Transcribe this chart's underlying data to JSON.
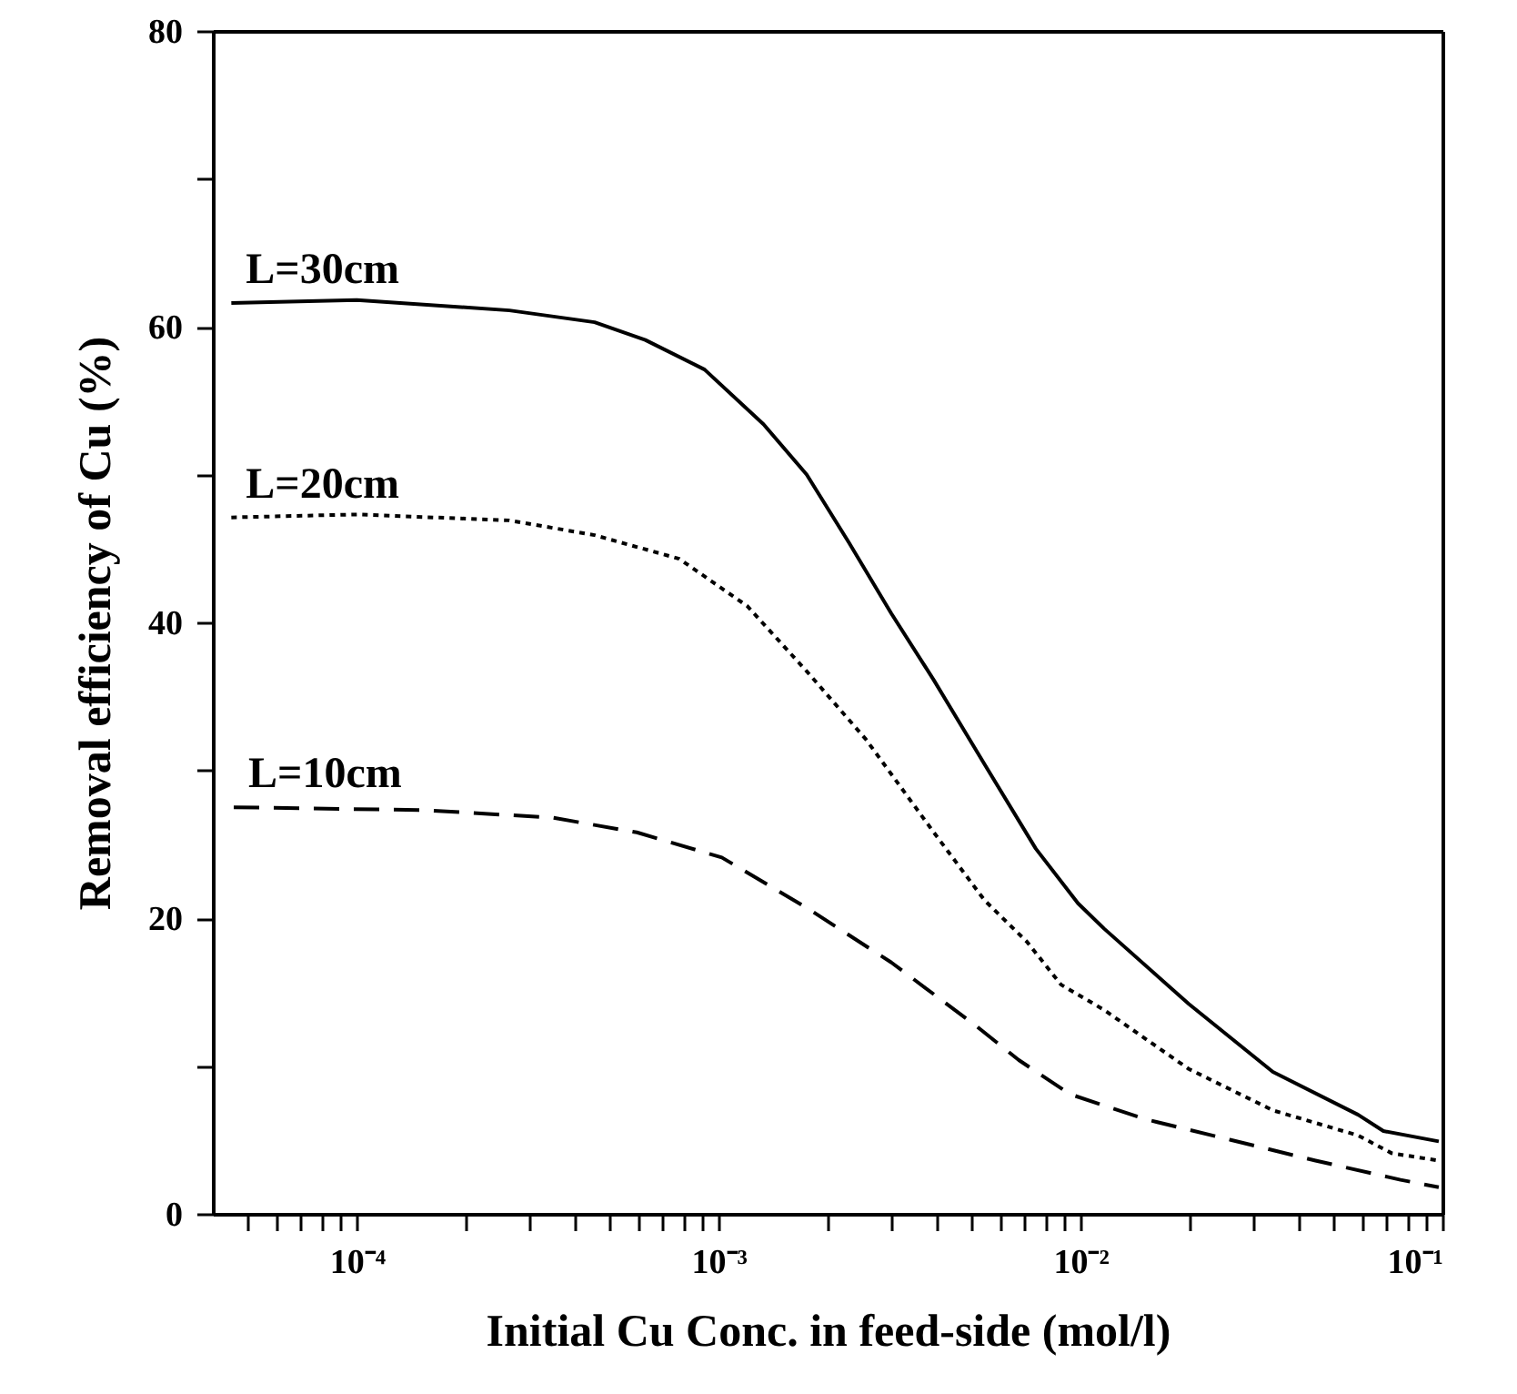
{
  "chart_data": {
    "type": "line",
    "xlabel": "Initial Cu Conc. in feed-side (mol/l)",
    "ylabel": "Removal efficiency of Cu (%)",
    "log": "x",
    "grid": false,
    "marker": "none",
    "xlim": [
      4e-05,
      0.1
    ],
    "ylim": [
      0,
      80
    ],
    "xticks": [
      {
        "value": 5e-05,
        "label": null
      },
      {
        "value": 6e-05,
        "label": null
      },
      {
        "value": 7e-05,
        "label": null
      },
      {
        "value": 8e-05,
        "label": null
      },
      {
        "value": 9e-05,
        "label": null
      },
      {
        "value": 0.0001,
        "label": "10⁻⁴"
      },
      {
        "value": 0.0002,
        "label": null
      },
      {
        "value": 0.0003,
        "label": null
      },
      {
        "value": 0.0004,
        "label": null
      },
      {
        "value": 0.0005,
        "label": null
      },
      {
        "value": 0.0006,
        "label": null
      },
      {
        "value": 0.0007,
        "label": null
      },
      {
        "value": 0.0008,
        "label": null
      },
      {
        "value": 0.0009,
        "label": null
      },
      {
        "value": 0.001,
        "label": "10⁻³"
      },
      {
        "value": 0.002,
        "label": null
      },
      {
        "value": 0.003,
        "label": null
      },
      {
        "value": 0.004,
        "label": null
      },
      {
        "value": 0.005,
        "label": null
      },
      {
        "value": 0.006,
        "label": null
      },
      {
        "value": 0.007,
        "label": null
      },
      {
        "value": 0.008,
        "label": null
      },
      {
        "value": 0.009,
        "label": null
      },
      {
        "value": 0.01,
        "label": "10⁻²"
      },
      {
        "value": 0.02,
        "label": null
      },
      {
        "value": 0.03,
        "label": null
      },
      {
        "value": 0.04,
        "label": null
      },
      {
        "value": 0.05,
        "label": null
      },
      {
        "value": 0.06,
        "label": null
      },
      {
        "value": 0.07,
        "label": null
      },
      {
        "value": 0.08,
        "label": null
      },
      {
        "value": 0.09,
        "label": null
      },
      {
        "value": 0.1,
        "label": "10⁻¹"
      }
    ],
    "yticks": [
      0,
      {
        "value": 10,
        "label": null
      },
      20,
      {
        "value": 30,
        "label": null
      },
      40,
      {
        "value": 50,
        "label": null
      },
      60,
      {
        "value": 70,
        "label": null
      },
      80
    ],
    "series": [
      {
        "name": "L=30cm",
        "color": "#000000",
        "line_style": "solid",
        "x": [
          4.5e-05,
          0.0001,
          0.000264,
          0.000454,
          0.000627,
          0.000914,
          0.00133,
          0.00175,
          0.00229,
          0.003,
          0.00393,
          0.00543,
          0.00752,
          0.00984,
          0.0116,
          0.0199,
          0.034,
          0.0585,
          0.0687,
          0.0977
        ],
        "values": [
          61.6,
          61.8,
          61.1,
          60.3,
          59.1,
          57.1,
          53.4,
          50.0,
          45.4,
          40.6,
          36.1,
          30.4,
          24.7,
          21.0,
          19.3,
          14.2,
          9.6,
          6.7,
          5.6,
          4.9
        ]
      },
      {
        "name": "L=20cm",
        "color": "#000000",
        "line_style": "dotted",
        "x": [
          4.5e-05,
          0.0001,
          0.000264,
          0.000454,
          0.000778,
          0.000966,
          0.0012,
          0.00175,
          0.00255,
          0.00393,
          0.00543,
          0.00711,
          0.00883,
          0.0116,
          0.0199,
          0.034,
          0.0585,
          0.0724,
          0.0977
        ],
        "values": [
          47.1,
          47.3,
          46.9,
          45.9,
          44.3,
          42.7,
          41.1,
          36.7,
          32.1,
          25.8,
          21.2,
          18.4,
          15.5,
          13.8,
          9.8,
          7.0,
          5.3,
          4.1,
          3.6
        ]
      },
      {
        "name": "L=10cm",
        "color": "#000000",
        "line_style": "dashed",
        "x": [
          4.57e-05,
          0.000154,
          0.000346,
          0.000594,
          0.00102,
          0.00175,
          0.003,
          0.00515,
          0.00675,
          0.00933,
          0.0151,
          0.026,
          0.0446,
          0.0766,
          0.0977
        ],
        "values": [
          27.5,
          27.3,
          26.8,
          25.8,
          24.1,
          20.7,
          17.0,
          12.7,
          10.4,
          8.1,
          6.4,
          5.0,
          3.6,
          2.3,
          1.8
        ]
      }
    ]
  }
}
